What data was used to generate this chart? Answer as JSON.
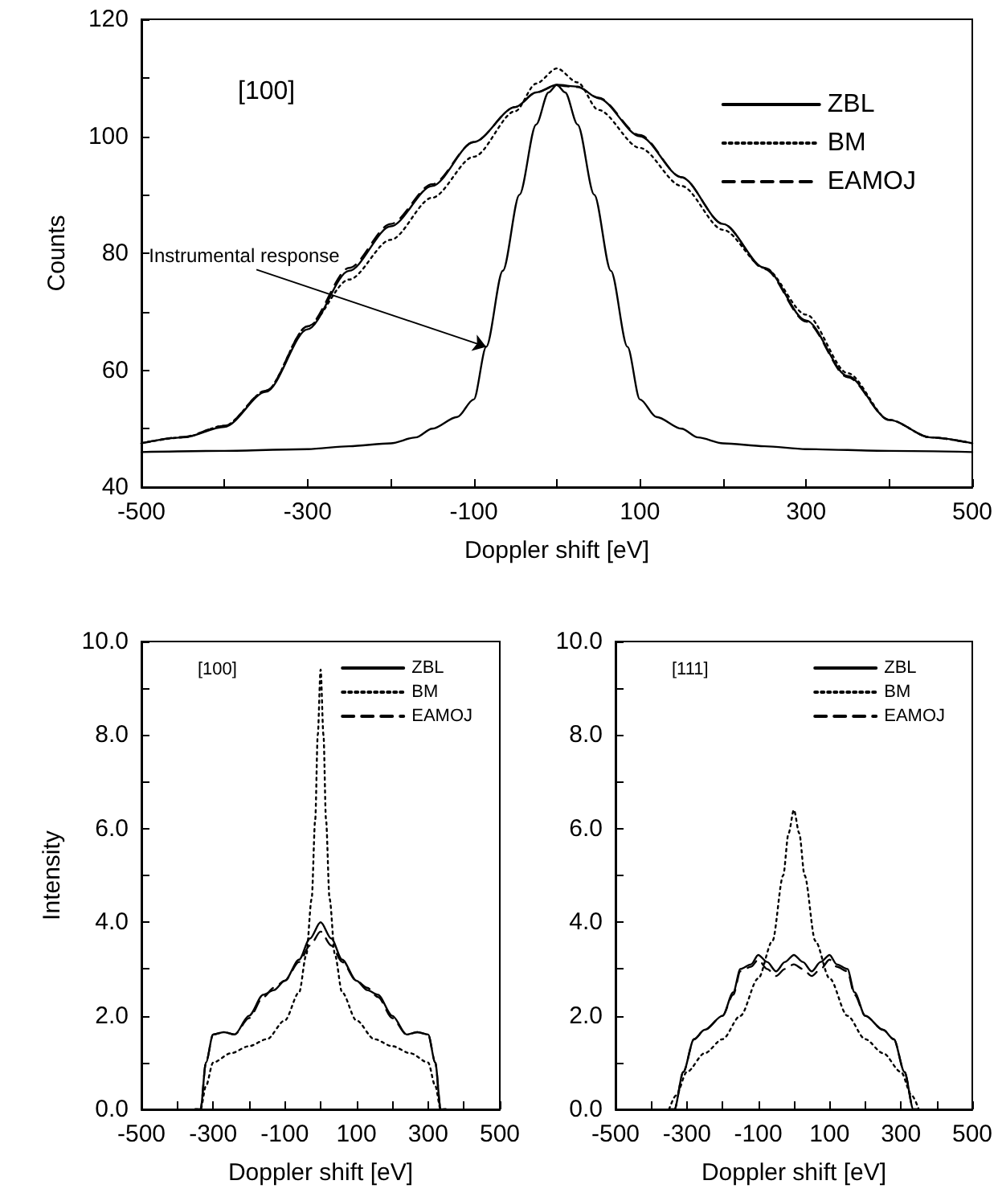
{
  "chart_data": [
    {
      "type": "line",
      "xlabel": "Doppler shift [eV]",
      "ylabel": "Counts",
      "legend": "top right",
      "marker": "none",
      "xlim": [
        -500,
        500
      ],
      "ylim": [
        40,
        120
      ],
      "xticks": [
        -500,
        {
          "value": -400,
          "label": null
        },
        -300,
        {
          "value": -200,
          "label": null
        },
        -100,
        {
          "value": 0,
          "label": null
        },
        100,
        {
          "value": 200,
          "label": null
        },
        300,
        {
          "value": 400,
          "label": null
        },
        500
      ],
      "yticks": [
        40,
        {
          "value": 50,
          "label": null
        },
        60,
        {
          "value": 70,
          "label": null
        },
        80,
        {
          "value": 90,
          "label": null
        },
        100,
        {
          "value": 110,
          "label": null
        },
        120
      ],
      "annotations": [
        "[100]",
        {
          "text": "Instrumental response",
          "x": -85,
          "y": 64
        }
      ],
      "series": [
        {
          "name": "ZBL",
          "color": "#000000",
          "line_style": "solid",
          "x": [
            -500,
            -450,
            -400,
            -350,
            -300,
            -250,
            -200,
            -150,
            -100,
            -50,
            -25,
            0,
            25,
            50,
            100,
            150,
            200,
            250,
            300,
            350,
            400,
            450,
            500
          ],
          "values": [
            47.5,
            48.5,
            50.3,
            56.3,
            67,
            77,
            84.6,
            91.5,
            99,
            105,
            107.5,
            108.8,
            108.5,
            106.5,
            100,
            93,
            85,
            77.5,
            68.5,
            59,
            51.5,
            48.5,
            47.5
          ]
        },
        {
          "name": "BM",
          "color": "#000000",
          "line_style": "dotted",
          "x": [
            -500,
            -450,
            -400,
            -350,
            -300,
            -250,
            -200,
            -150,
            -100,
            -50,
            -25,
            0,
            25,
            50,
            100,
            150,
            200,
            250,
            300,
            350,
            400,
            450,
            500
          ],
          "values": [
            47.5,
            48.5,
            50.5,
            56.5,
            67.5,
            75.5,
            82.3,
            89.5,
            96.5,
            104.3,
            109,
            111.6,
            109.2,
            104.5,
            98,
            91.5,
            84,
            77.5,
            69.5,
            59.5,
            51.5,
            48.5,
            47.5
          ]
        },
        {
          "name": "EAMOJ",
          "color": "#000000",
          "line_style": "dashed",
          "x": [
            -500,
            -450,
            -400,
            -350,
            -300,
            -250,
            -200,
            -150,
            -100,
            -50,
            -25,
            0,
            25,
            50,
            100,
            150,
            200,
            250,
            300,
            350,
            400,
            450,
            500
          ],
          "values": [
            47.5,
            48.6,
            50.5,
            56.5,
            67.5,
            77.5,
            85,
            91.8,
            99,
            105,
            107.5,
            108.7,
            108.4,
            106.6,
            100.2,
            93,
            85,
            77.3,
            68.3,
            58.8,
            51.5,
            48.5,
            47.5
          ]
        },
        {
          "color": "#000000",
          "line_style": "solid",
          "x": [
            -500,
            -400,
            -300,
            -250,
            -200,
            -170,
            -150,
            -120,
            -100,
            -85,
            -65,
            -45,
            -25,
            -10,
            0,
            10,
            25,
            45,
            65,
            85,
            100,
            120,
            150,
            170,
            200,
            250,
            300,
            400,
            500
          ],
          "values": [
            46,
            46.2,
            46.5,
            47,
            47.5,
            48.5,
            50,
            52,
            55,
            64,
            77,
            90,
            102,
            107.5,
            108.8,
            107.5,
            102,
            90,
            77,
            64,
            55,
            52,
            50,
            48.5,
            47.5,
            47,
            46.5,
            46.2,
            46
          ]
        }
      ]
    },
    {
      "type": "line",
      "xlabel": "Doppler shift [eV]",
      "ylabel": "Intensity",
      "legend": "top right",
      "marker": "none",
      "xlim": [
        -500,
        500
      ],
      "ylim": [
        0,
        10
      ],
      "xticks": [
        -500,
        {
          "value": -400,
          "label": null
        },
        -300,
        {
          "value": -200,
          "label": null
        },
        -100,
        {
          "value": 0,
          "label": null
        },
        100,
        {
          "value": 200,
          "label": null
        },
        300,
        {
          "value": 400,
          "label": null
        },
        500
      ],
      "yticks": [
        {
          "value": 0,
          "label": "0.0"
        },
        {
          "value": 1,
          "label": null
        },
        {
          "value": 2,
          "label": "2.0"
        },
        {
          "value": 3,
          "label": null
        },
        {
          "value": 4,
          "label": "4.0"
        },
        {
          "value": 5,
          "label": null
        },
        {
          "value": 6,
          "label": "6.0"
        },
        {
          "value": 7,
          "label": null
        },
        {
          "value": 8,
          "label": "8.0"
        },
        {
          "value": 9,
          "label": null
        },
        {
          "value": 10,
          "label": "10.0"
        }
      ],
      "annotations": [
        "[100]"
      ],
      "series": [
        {
          "name": "ZBL",
          "color": "#000000",
          "line_style": "solid",
          "x": [
            -350,
            -335,
            -320,
            -300,
            -270,
            -240,
            -200,
            -160,
            -130,
            -100,
            -60,
            -30,
            0,
            30,
            60,
            100,
            130,
            160,
            200,
            240,
            270,
            300,
            320,
            335,
            350
          ],
          "values": [
            0,
            0,
            1.0,
            1.6,
            1.65,
            1.6,
            2.0,
            2.45,
            2.55,
            2.75,
            3.2,
            3.65,
            4.0,
            3.65,
            3.2,
            2.75,
            2.55,
            2.45,
            2.0,
            1.6,
            1.65,
            1.6,
            1.0,
            0,
            0
          ]
        },
        {
          "name": "BM",
          "color": "#000000",
          "line_style": "dotted",
          "x": [
            -350,
            -335,
            -320,
            -300,
            -250,
            -200,
            -150,
            -100,
            -60,
            -40,
            -25,
            -15,
            -8,
            0,
            8,
            15,
            25,
            40,
            60,
            100,
            150,
            200,
            250,
            300,
            320,
            335,
            350
          ],
          "values": [
            0,
            0,
            0.5,
            1.0,
            1.2,
            1.35,
            1.5,
            1.9,
            2.5,
            3.3,
            4.5,
            6.2,
            8.0,
            9.4,
            8.0,
            6.2,
            4.5,
            3.3,
            2.5,
            1.9,
            1.5,
            1.35,
            1.2,
            1.0,
            0.5,
            0,
            0
          ]
        },
        {
          "name": "EAMOJ",
          "color": "#000000",
          "line_style": "dashed",
          "x": [
            -350,
            -335,
            -320,
            -300,
            -270,
            -240,
            -200,
            -160,
            -130,
            -100,
            -60,
            -30,
            0,
            30,
            60,
            100,
            130,
            160,
            200,
            240,
            270,
            300,
            320,
            335,
            350
          ],
          "values": [
            0,
            0,
            1.0,
            1.6,
            1.65,
            1.6,
            1.95,
            2.4,
            2.6,
            2.75,
            3.15,
            3.5,
            3.8,
            3.5,
            3.15,
            2.75,
            2.6,
            2.4,
            1.95,
            1.6,
            1.65,
            1.6,
            1.0,
            0,
            0
          ]
        }
      ]
    },
    {
      "type": "line",
      "xlabel": "Doppler shift [eV]",
      "legend": "top right",
      "marker": "none",
      "xlim": [
        -500,
        500
      ],
      "ylim": [
        0,
        10
      ],
      "xticks": [
        -500,
        {
          "value": -400,
          "label": null
        },
        -300,
        {
          "value": -200,
          "label": null
        },
        -100,
        {
          "value": 0,
          "label": null
        },
        100,
        {
          "value": 200,
          "label": null
        },
        300,
        {
          "value": 400,
          "label": null
        },
        500
      ],
      "yticks": [
        {
          "value": 0,
          "label": "0.0"
        },
        {
          "value": 1,
          "label": null
        },
        {
          "value": 2,
          "label": "2.0"
        },
        {
          "value": 3,
          "label": null
        },
        {
          "value": 4,
          "label": "4.0"
        },
        {
          "value": 5,
          "label": null
        },
        {
          "value": 6,
          "label": "6.0"
        },
        {
          "value": 7,
          "label": null
        },
        {
          "value": 8,
          "label": "8.0"
        },
        {
          "value": 9,
          "label": null
        },
        {
          "value": 10,
          "label": "10.0"
        }
      ],
      "annotations": [
        "[111]"
      ],
      "series": [
        {
          "name": "ZBL",
          "color": "#000000",
          "line_style": "solid",
          "x": [
            -350,
            -335,
            -310,
            -280,
            -250,
            -200,
            -170,
            -150,
            -120,
            -100,
            -75,
            -50,
            -25,
            0,
            25,
            50,
            75,
            100,
            120,
            150,
            170,
            200,
            250,
            280,
            310,
            335,
            350
          ],
          "values": [
            0,
            0,
            0.8,
            1.5,
            1.7,
            2.0,
            2.5,
            3.0,
            3.1,
            3.3,
            3.15,
            2.95,
            3.15,
            3.3,
            3.15,
            2.95,
            3.15,
            3.3,
            3.1,
            3.0,
            2.5,
            2.0,
            1.7,
            1.5,
            0.8,
            0,
            0
          ]
        },
        {
          "name": "BM",
          "color": "#000000",
          "line_style": "dotted",
          "x": [
            -350,
            -330,
            -300,
            -250,
            -200,
            -150,
            -100,
            -60,
            -30,
            -15,
            0,
            15,
            30,
            60,
            100,
            150,
            200,
            250,
            300,
            330,
            350
          ],
          "values": [
            0,
            0.3,
            0.8,
            1.2,
            1.5,
            2.0,
            2.8,
            3.6,
            5.0,
            5.9,
            6.4,
            5.9,
            5.0,
            3.6,
            2.8,
            2.0,
            1.5,
            1.2,
            0.8,
            0.3,
            0
          ]
        },
        {
          "name": "EAMOJ",
          "color": "#000000",
          "line_style": "dashed",
          "x": [
            -350,
            -335,
            -310,
            -280,
            -250,
            -200,
            -170,
            -150,
            -120,
            -100,
            -75,
            -50,
            -25,
            0,
            25,
            50,
            75,
            100,
            120,
            150,
            170,
            200,
            250,
            280,
            310,
            335,
            350
          ],
          "values": [
            0,
            0,
            0.8,
            1.5,
            1.7,
            2.0,
            2.45,
            2.95,
            3.05,
            3.2,
            3.0,
            2.85,
            3.0,
            3.1,
            3.0,
            2.85,
            3.0,
            3.2,
            3.05,
            2.95,
            2.45,
            2.0,
            1.7,
            1.5,
            0.8,
            0,
            0
          ]
        }
      ]
    }
  ]
}
